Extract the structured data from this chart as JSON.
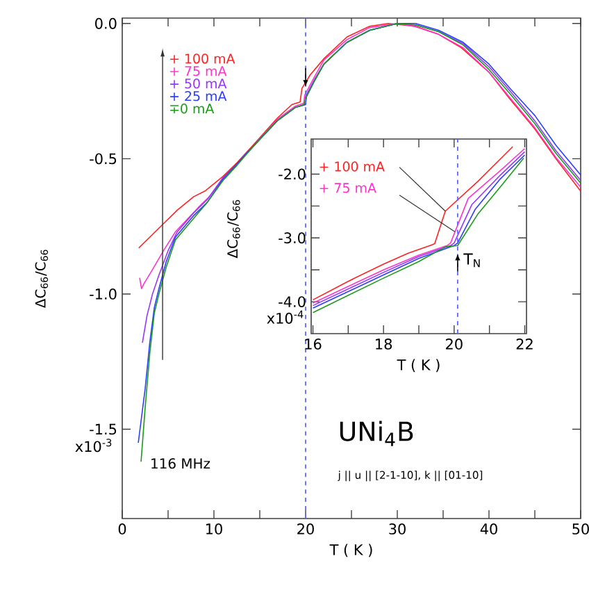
{
  "chart_data": [
    {
      "type": "line",
      "xlabel": "T ( K )",
      "ylabel": "ΔC$_{66}$/C$_{66}$",
      "xlim": [
        0,
        50
      ],
      "ylim": [
        -1.83,
        0.02
      ],
      "xticks": [
        0,
        {
          "value": 5,
          "label": null
        },
        10,
        {
          "value": 15,
          "label": null
        },
        20,
        {
          "value": 25,
          "label": null
        },
        30,
        {
          "value": 35,
          "label": null
        },
        40,
        {
          "value": 45,
          "label": null
        },
        50
      ],
      "yticks": [
        {
          "value": 0,
          "label": "0.0"
        },
        -0.5,
        {
          "value": -1.0,
          "label": "-1.0"
        },
        {
          "value": -1.5,
          "label": "-1.5"
        }
      ],
      "legend": "top left",
      "series": [
        {
          "name": "+ 100 mA",
          "color": "#ff2020",
          "x": [
            1.8,
            3,
            4.5,
            6,
            7.8,
            9,
            11,
            12.5,
            14.4,
            16.9,
            18.5,
            19.4,
            19.6,
            20.5,
            22,
            24.5,
            27,
            29,
            32,
            34.5,
            37,
            40,
            42.3,
            45,
            47.3,
            50
          ],
          "values": [
            -0.83,
            -0.79,
            -0.74,
            -0.69,
            -0.64,
            -0.62,
            -0.565,
            -0.515,
            -0.445,
            -0.35,
            -0.3,
            -0.29,
            -0.24,
            -0.19,
            -0.13,
            -0.05,
            -0.01,
            0.0,
            -0.01,
            -0.04,
            -0.09,
            -0.18,
            -0.28,
            -0.39,
            -0.5,
            -0.62
          ]
        },
        {
          "name": "+ 75 mA",
          "color": "#ff33cc",
          "x": [
            1.9,
            2.1,
            2.4,
            3.3,
            4.5,
            5.8,
            8.3,
            9.5,
            11,
            12.5,
            14.4,
            16.9,
            18.9,
            19.8,
            19.9,
            21,
            22,
            24.5,
            27,
            30,
            32,
            34.5,
            37.2,
            40,
            42.3,
            45,
            47.3,
            50
          ],
          "values": [
            -0.94,
            -0.98,
            -0.96,
            -0.91,
            -0.84,
            -0.77,
            -0.68,
            -0.64,
            -0.57,
            -0.52,
            -0.45,
            -0.355,
            -0.305,
            -0.295,
            -0.265,
            -0.195,
            -0.135,
            -0.06,
            -0.015,
            0.0,
            -0.012,
            -0.04,
            -0.09,
            -0.18,
            -0.275,
            -0.385,
            -0.495,
            -0.605
          ]
        },
        {
          "name": "+ 50 mA",
          "color": "#9933ff",
          "x": [
            2.2,
            2.7,
            3.3,
            4,
            5,
            6,
            7.8,
            9.3,
            11,
            12.5,
            14.4,
            16.9,
            18.9,
            19.9,
            20.0,
            21,
            22,
            24.5,
            27,
            30,
            32,
            34.5,
            37.2,
            40,
            42.3,
            45,
            47.3,
            50
          ],
          "values": [
            -1.18,
            -1.08,
            -1.0,
            -0.93,
            -0.84,
            -0.77,
            -0.7,
            -0.65,
            -0.57,
            -0.52,
            -0.45,
            -0.36,
            -0.31,
            -0.3,
            -0.27,
            -0.205,
            -0.15,
            -0.07,
            -0.025,
            0.0,
            -0.005,
            -0.03,
            -0.075,
            -0.16,
            -0.25,
            -0.36,
            -0.47,
            -0.58
          ]
        },
        {
          "name": "+ 25 mA",
          "color": "#2a3dff",
          "x": [
            1.75,
            2.5,
            3,
            3.5,
            4,
            4.8,
            5.8,
            7.8,
            9.3,
            11,
            12.5,
            14.4,
            16.9,
            18.9,
            20.0,
            20.1,
            21,
            22,
            24.5,
            27,
            30,
            32,
            34.5,
            37.2,
            40,
            42.3,
            45,
            47.3,
            50
          ],
          "values": [
            -1.55,
            -1.35,
            -1.18,
            -1.05,
            -0.98,
            -0.88,
            -0.79,
            -0.71,
            -0.66,
            -0.575,
            -0.52,
            -0.45,
            -0.36,
            -0.31,
            -0.3,
            -0.27,
            -0.21,
            -0.15,
            -0.07,
            -0.025,
            0.0,
            0.0,
            -0.025,
            -0.07,
            -0.15,
            -0.24,
            -0.34,
            -0.45,
            -0.56
          ]
        },
        {
          "name": "∓0 mA",
          "color": "#1a9a1a",
          "x": [
            2.05,
            2.5,
            3,
            3.5,
            4,
            4.8,
            5.8,
            7.8,
            9.3,
            11,
            12.5,
            14.4,
            16.9,
            18.9,
            19.8,
            20.1,
            21,
            22,
            24.5,
            27,
            30,
            32,
            34.5,
            37.2,
            40,
            42.3,
            45,
            47.3,
            50
          ],
          "values": [
            -1.62,
            -1.42,
            -1.22,
            -1.07,
            -1.0,
            -0.9,
            -0.8,
            -0.72,
            -0.66,
            -0.58,
            -0.525,
            -0.45,
            -0.36,
            -0.31,
            -0.3,
            -0.27,
            -0.21,
            -0.15,
            -0.07,
            -0.025,
            0.0,
            -0.005,
            -0.03,
            -0.08,
            -0.17,
            -0.26,
            -0.37,
            -0.48,
            -0.59
          ]
        }
      ],
      "ref_lines": [
        {
          "axis": "x",
          "value": 20,
          "color": "#5a6aff",
          "line_style": "dashed"
        }
      ],
      "annotations": [
        "116 MHz",
        "UNi$_{4}$B",
        "j || u || [2-1-10], k || [01-10]",
        "x10$^{-3}$"
      ]
    },
    {
      "type": "line",
      "xlabel": "T ( K )",
      "ylabel": "ΔC$_{66}$/C$_{66}$",
      "xlim": [
        15.95,
        22.05
      ],
      "ylim": [
        -4.5,
        -1.45
      ],
      "xticks": [
        16,
        {
          "value": 17,
          "label": null
        },
        18,
        {
          "value": 19,
          "label": null
        },
        20,
        {
          "value": 21,
          "label": null
        },
        22
      ],
      "yticks": [
        {
          "value": -2.0,
          "label": "-2.0"
        },
        {
          "value": -2.5,
          "label": null
        },
        {
          "value": -3.0,
          "label": "-3.0"
        },
        {
          "value": -3.5,
          "label": null
        },
        {
          "value": -4.0,
          "label": "-4.0"
        }
      ],
      "legend": "top left",
      "series": [
        {
          "name": "+ 100 mA",
          "color": "#ff2020",
          "x": [
            16.0,
            17,
            18,
            18.7,
            19.36,
            19.45,
            19.75,
            20.68,
            21.66
          ],
          "values": [
            -3.97,
            -3.68,
            -3.41,
            -3.24,
            -3.11,
            -3.09,
            -2.58,
            -2.11,
            -1.57
          ]
        },
        {
          "name": "+ 75 mA",
          "color": "#ff33cc",
          "x": [
            16.0,
            17,
            18,
            19,
            19.8,
            19.9,
            20.4,
            21.3,
            22
          ],
          "values": [
            -4.02,
            -3.76,
            -3.5,
            -3.27,
            -3.12,
            -3.08,
            -2.38,
            -1.95,
            -1.6
          ]
        },
        {
          "color": "#9933ff",
          "x": [
            16.0,
            17,
            18,
            19,
            19.9,
            20.0,
            20.5,
            21.3,
            22
          ],
          "values": [
            -4.06,
            -3.8,
            -3.54,
            -3.29,
            -3.12,
            -3.08,
            -2.48,
            -2.02,
            -1.65
          ]
        },
        {
          "color": "#2a3dff",
          "x": [
            16.0,
            17,
            18,
            19,
            20.0,
            20.1,
            20.6,
            21.3,
            22
          ],
          "values": [
            -4.1,
            -3.84,
            -3.58,
            -3.32,
            -3.12,
            -3.08,
            -2.55,
            -2.08,
            -1.7
          ]
        },
        {
          "color": "#1a9a1a",
          "x": [
            16.0,
            17,
            18,
            19,
            19.75,
            20.1,
            20.68,
            21.34,
            21.97
          ],
          "values": [
            -4.17,
            -3.9,
            -3.63,
            -3.37,
            -3.14,
            -3.12,
            -2.62,
            -2.18,
            -1.75
          ]
        }
      ],
      "ref_lines": [
        {
          "axis": "x",
          "value": 20.1,
          "color": "#5a6aff",
          "line_style": "dashed"
        }
      ],
      "annotations": [
        {
          "text": "T$_{N}$",
          "x": 20.1,
          "y": -3.35
        },
        "x10$^{-4}$"
      ]
    }
  ]
}
